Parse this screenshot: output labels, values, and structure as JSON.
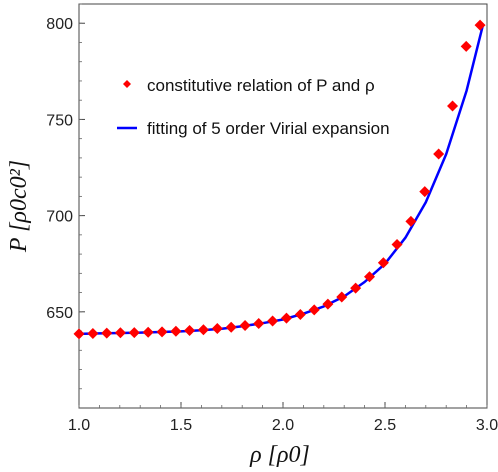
{
  "chart_data": {
    "type": "scatter",
    "xlabel": "ρ [ρ0]",
    "ylabel": "P [ρ0c0²]",
    "xlim": [
      1.0,
      3.0
    ],
    "ylim": [
      600,
      810
    ],
    "x_ticks": [
      "1.0",
      "1.5",
      "2.0",
      "2.5",
      "3.0"
    ],
    "y_ticks": [
      "650",
      "700",
      "750",
      "800"
    ],
    "legend_position": "top-right",
    "series": [
      {
        "name": "constitutive relation of P and ρ",
        "kind": "points",
        "marker": "diamond",
        "color": "#ff0000",
        "x": [
          1.0,
          1.068,
          1.136,
          1.203,
          1.271,
          1.339,
          1.407,
          1.475,
          1.542,
          1.61,
          1.678,
          1.746,
          1.814,
          1.881,
          1.949,
          2.017,
          2.085,
          2.153,
          2.22,
          2.288,
          2.356,
          2.424,
          2.492,
          2.559,
          2.627,
          2.695,
          2.763,
          2.831,
          2.898,
          2.966
        ],
        "y": [
          638.5,
          638.7,
          638.9,
          639.1,
          639.2,
          639.4,
          639.6,
          639.9,
          640.3,
          640.7,
          641.3,
          642.0,
          642.9,
          643.9,
          645.2,
          646.7,
          648.6,
          651.0,
          654.0,
          657.7,
          662.3,
          668.2,
          675.5,
          685.0,
          697.0,
          712.5,
          732.0,
          757.0,
          788.0,
          799.0
        ]
      },
      {
        "name": "fitting of 5 order Virial expansion",
        "kind": "line",
        "color": "#0000ff",
        "x": [
          1.0,
          1.1,
          1.2,
          1.3,
          1.4,
          1.5,
          1.6,
          1.7,
          1.8,
          1.9,
          2.0,
          2.1,
          2.2,
          2.3,
          2.4,
          2.5,
          2.6,
          2.7,
          2.8,
          2.9,
          2.98
        ],
        "y": [
          638.5,
          638.8,
          639.0,
          639.2,
          639.5,
          639.8,
          640.4,
          641.2,
          642.5,
          644.1,
          646.0,
          649.0,
          652.8,
          658.0,
          665.5,
          675.0,
          688.5,
          707.0,
          732.0,
          765.0,
          799.0
        ]
      }
    ]
  }
}
